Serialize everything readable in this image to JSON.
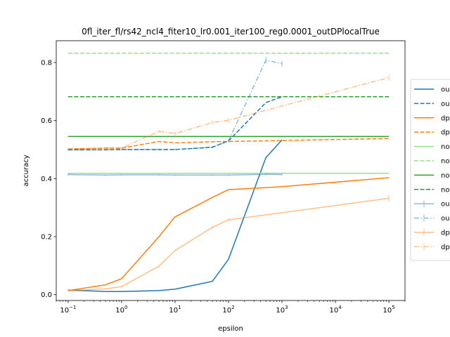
{
  "chart_data": {
    "type": "line",
    "title": "0fl_iter_fl/rs42_ncl4_fiter10_lr0.001_iter100_reg0.0001_outDPlocalTrue",
    "xlabel": "epsilon",
    "ylabel": "accuracy",
    "xscale": "log",
    "xlim": [
      0.06,
      200000
    ],
    "ylim": [
      -0.02,
      0.875
    ],
    "xticks": [
      {
        "value": 0.1,
        "base": "10",
        "exp": "−1"
      },
      {
        "value": 1,
        "base": "10",
        "exp": "0"
      },
      {
        "value": 10,
        "base": "10",
        "exp": "1"
      },
      {
        "value": 100,
        "base": "10",
        "exp": "2"
      },
      {
        "value": 1000,
        "base": "10",
        "exp": "3"
      },
      {
        "value": 10000,
        "base": "10",
        "exp": "4"
      },
      {
        "value": 100000,
        "base": "10",
        "exp": "5"
      }
    ],
    "yticks": [
      "0.0",
      "0.2",
      "0.4",
      "0.6",
      "0.8"
    ],
    "grid": false,
    "legend_position": "right (clipped)",
    "series": [
      {
        "name": "ou",
        "color": "#1f77b4",
        "style": "solid",
        "width": 1.5,
        "alpha": 1,
        "x": [
          0.1,
          0.5,
          1,
          5,
          10,
          50,
          100,
          500,
          1000
        ],
        "y": [
          0.016,
          0.011,
          0.011,
          0.014,
          0.019,
          0.046,
          0.122,
          0.472,
          0.533
        ]
      },
      {
        "name": "ou",
        "color": "#1f77b4",
        "style": "dashed",
        "width": 1.5,
        "alpha": 1,
        "x": [
          0.1,
          0.5,
          1,
          5,
          10,
          50,
          100,
          500,
          1000
        ],
        "y": [
          0.499,
          0.499,
          0.5,
          0.5,
          0.5,
          0.508,
          0.53,
          0.662,
          0.682
        ]
      },
      {
        "name": "dp",
        "color": "#ff7f0e",
        "style": "solid",
        "width": 1.5,
        "alpha": 1,
        "x": [
          0.1,
          0.5,
          1,
          5,
          10,
          50,
          100,
          500,
          1000,
          100000
        ],
        "y": [
          0.014,
          0.034,
          0.055,
          0.2,
          0.268,
          0.335,
          0.362,
          0.369,
          0.372,
          0.403
        ]
      },
      {
        "name": "dp",
        "color": "#ff7f0e",
        "style": "dashed",
        "width": 1.5,
        "alpha": 1,
        "x": [
          0.1,
          0.5,
          1,
          5,
          10,
          50,
          100,
          500,
          1000,
          100000
        ],
        "y": [
          0.502,
          0.505,
          0.505,
          0.528,
          0.523,
          0.527,
          0.528,
          0.53,
          0.531,
          0.538
        ]
      },
      {
        "name": "no",
        "color": "#98df8a",
        "style": "solid",
        "width": 1.5,
        "alpha": 1,
        "x": [
          0.1,
          100000
        ],
        "y": [
          0.418,
          0.418
        ]
      },
      {
        "name": "no",
        "color": "#98df8a",
        "style": "dashed",
        "width": 1.5,
        "alpha": 1,
        "x": [
          0.1,
          100000
        ],
        "y": [
          0.832,
          0.832
        ]
      },
      {
        "name": "no",
        "color": "#2ca02c",
        "style": "solid",
        "width": 1.5,
        "alpha": 1,
        "x": [
          0.1,
          100000
        ],
        "y": [
          0.545,
          0.545
        ]
      },
      {
        "name": "no",
        "color": "#2ca02c",
        "style": "dashed",
        "width": 1.5,
        "alpha": 1,
        "x": [
          0.1,
          100000
        ],
        "y": [
          0.682,
          0.682
        ]
      },
      {
        "name": "ou",
        "color": "#1f77b4",
        "style": "solid",
        "width": 1.5,
        "alpha": 0.5,
        "errorbar": true,
        "x": [
          0.1,
          0.5,
          1,
          5,
          10,
          50,
          100,
          500,
          1000
        ],
        "y": [
          0.414,
          0.412,
          0.413,
          0.413,
          0.412,
          0.412,
          0.412,
          0.415,
          0.414
        ],
        "err": [
          0.004,
          0.003,
          0.003,
          0.003,
          0.003,
          0.003,
          0.003,
          0.004,
          0.004
        ]
      },
      {
        "name": "ou",
        "color": "#1f77b4",
        "style": "dashdot",
        "width": 1.5,
        "alpha": 0.5,
        "errorbar": true,
        "x": [
          0.1,
          0.5,
          1,
          5,
          10,
          50,
          100,
          500,
          1000
        ],
        "y": [
          0.499,
          0.499,
          0.5,
          0.5,
          0.5,
          0.508,
          0.53,
          0.808,
          0.796
        ],
        "err": [
          0.004,
          0.003,
          0.003,
          0.003,
          0.003,
          0.004,
          0.005,
          0.012,
          0.01
        ]
      },
      {
        "name": "dp",
        "color": "#ff7f0e",
        "style": "solid",
        "width": 1.5,
        "alpha": 0.5,
        "errorbar": true,
        "x": [
          0.1,
          0.5,
          1,
          5,
          10,
          50,
          100,
          100000
        ],
        "y": [
          0.014,
          0.02,
          0.028,
          0.098,
          0.152,
          0.232,
          0.258,
          0.332
        ],
        "err": [
          0.004,
          0.003,
          0.003,
          0.004,
          0.004,
          0.005,
          0.006,
          0.012
        ]
      },
      {
        "name": "dp",
        "color": "#ff7f0e",
        "style": "dashdot",
        "width": 1.5,
        "alpha": 0.5,
        "errorbar": true,
        "x": [
          0.1,
          0.5,
          1,
          5,
          10,
          50,
          100,
          100000
        ],
        "y": [
          0.502,
          0.505,
          0.505,
          0.563,
          0.555,
          0.593,
          0.601,
          0.748
        ],
        "err": [
          0.004,
          0.003,
          0.003,
          0.006,
          0.006,
          0.008,
          0.008,
          0.01
        ]
      }
    ]
  }
}
